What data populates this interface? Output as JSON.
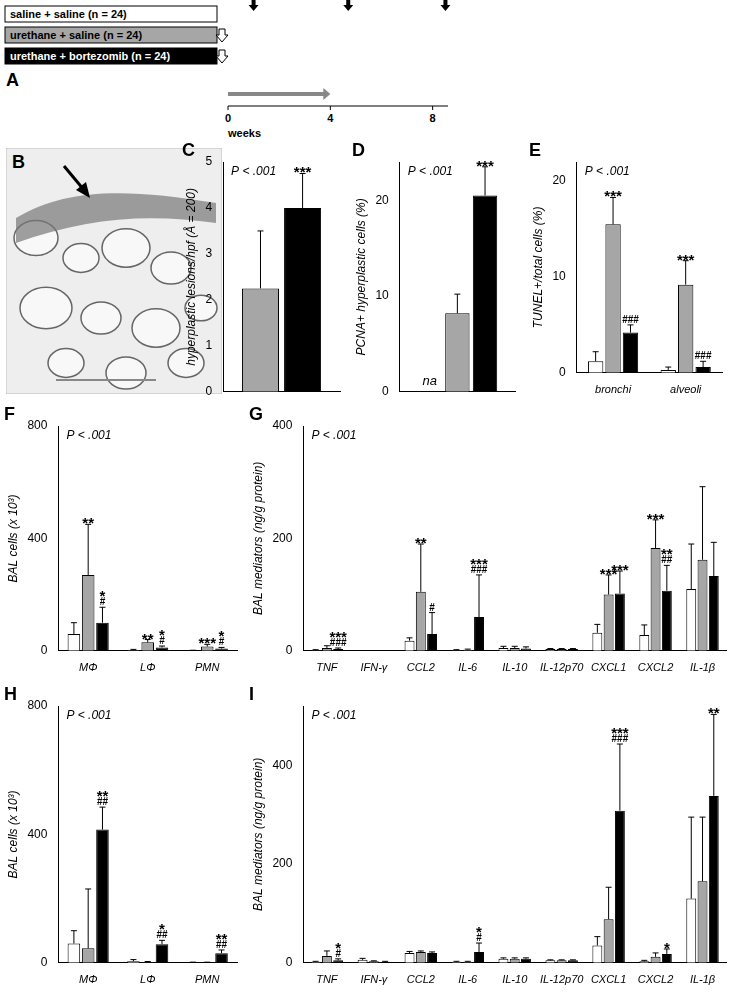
{
  "diagram": {
    "title": "A",
    "groups": [
      {
        "label": "saline + saline (n = 24)",
        "color": "#ffffff"
      },
      {
        "label": "urethane + saline (n = 24)",
        "color": "#a6a6a6"
      },
      {
        "label": "urethane + bortezomib (n = 24)",
        "color": "#000000"
      }
    ],
    "xlim": [
      0,
      8.6
    ],
    "xticks": [
      0,
      4,
      8
    ],
    "xlabel": "weeks",
    "urethane_week": 0,
    "urethane_groups": [
      1,
      2
    ],
    "bortezomib_weeks": [
      0,
      4
    ],
    "harvest_weeks": [
      1,
      4.7,
      8.5
    ]
  },
  "image": {
    "title": "B"
  },
  "chart_data": [
    {
      "type": "bar",
      "title": "C",
      "ylabel": "hyperplastic lesions/hpf (Å = 200)",
      "annotations": [
        "P < .001"
      ],
      "categories": [
        null
      ],
      "tick_labels": "y",
      "ylim": [
        0,
        5
      ],
      "yticks": [
        0,
        1,
        2,
        3,
        4,
        5
      ],
      "series": [
        {
          "color": "#a6a6a6",
          "values": [
            2.25
          ],
          "errors": [
            1.25
          ],
          "marks": [
            null
          ]
        },
        {
          "color": "#000000",
          "values": [
            4.0
          ],
          "errors": [
            0.75
          ],
          "marks": [
            [
              "***"
            ]
          ]
        }
      ]
    },
    {
      "type": "bar",
      "title": "D",
      "ylabel": "PCNA+ hyperplastic cells (%)",
      "annotations": [
        "P < .001"
      ],
      "categories": [
        null
      ],
      "tick_labels": "y",
      "ylim": [
        0,
        24
      ],
      "yticks": [
        0,
        10,
        20
      ],
      "series": [
        {
          "color": "#ffffff",
          "values": [
            null
          ],
          "errors": [
            null
          ],
          "marks": [
            null
          ],
          "null_label": "na"
        },
        {
          "color": "#a6a6a6",
          "values": [
            8.2
          ],
          "errors": [
            2
          ],
          "marks": [
            null
          ]
        },
        {
          "color": "#000000",
          "values": [
            20.5
          ],
          "errors": [
            3
          ],
          "marks": [
            [
              "***"
            ]
          ]
        }
      ]
    },
    {
      "type": "bar",
      "title": "E",
      "ylabel": "TUNEL+/total cells (%)",
      "annotations": [
        "P < .001"
      ],
      "categories": [
        "bronchi",
        "alveoli"
      ],
      "ylim": [
        0,
        22
      ],
      "yticks": [
        0,
        10,
        20
      ],
      "series": [
        {
          "color": "#ffffff",
          "values": [
            1.2,
            0.3
          ],
          "errors": [
            1.0,
            0.3
          ],
          "marks": [
            null,
            null
          ]
        },
        {
          "color": "#a6a6a6",
          "values": [
            15.5,
            9.2
          ],
          "errors": [
            2.8,
            2.5
          ],
          "marks": [
            [
              "***"
            ],
            [
              "***"
            ]
          ]
        },
        {
          "color": "#000000",
          "values": [
            4.2,
            0.6
          ],
          "errors": [
            0.8,
            0.6
          ],
          "marks": [
            [
              "###"
            ],
            [
              "###"
            ]
          ]
        }
      ]
    },
    {
      "type": "bar",
      "title": "F",
      "ylabel": "BAL cells (x 10³)",
      "annotations": [
        "P < .001"
      ],
      "categories": [
        "MΦ",
        "LΦ",
        "PMN"
      ],
      "ylim": [
        0,
        800
      ],
      "yticks": [
        0,
        400,
        800
      ],
      "series": [
        {
          "color": "#ffffff",
          "values": [
            60,
            3,
            1
          ],
          "errors": [
            40,
            2,
            1
          ],
          "marks": [
            null,
            null,
            null
          ]
        },
        {
          "color": "#a6a6a6",
          "values": [
            270,
            30,
            15
          ],
          "errors": [
            180,
            10,
            8
          ],
          "marks": [
            [
              "**"
            ],
            [
              "**"
            ],
            [
              "***"
            ]
          ]
        },
        {
          "color": "#000000",
          "values": [
            100,
            12,
            8
          ],
          "errors": [
            55,
            5,
            4
          ],
          "marks": [
            [
              "*",
              "#"
            ],
            [
              "*",
              "#"
            ],
            [
              "*",
              "#"
            ]
          ]
        }
      ]
    },
    {
      "type": "bar",
      "title": "G",
      "ylabel": "BAL mediators (ng/g protein)",
      "annotations": [
        "P < .001"
      ],
      "categories": [
        "TNF",
        "IFN-γ",
        "CCL2",
        "IL-6",
        "IL-10",
        "IL-12p70",
        "CXCL1",
        "CXCL2",
        "IL-1β"
      ],
      "ylim": [
        0,
        400
      ],
      "yticks": [
        0,
        200,
        400
      ],
      "series": [
        {
          "color": "#ffffff",
          "values": [
            1,
            0,
            18,
            1,
            5,
            3,
            32,
            28,
            110
          ],
          "errors": [
            1,
            0,
            5,
            1,
            3,
            1,
            15,
            18,
            80
          ],
          "marks": [
            null,
            null,
            null,
            null,
            null,
            null,
            null,
            null,
            null
          ]
        },
        {
          "color": "#a6a6a6",
          "values": [
            5,
            0,
            105,
            2,
            5,
            3,
            100,
            183,
            162
          ],
          "errors": [
            4,
            0,
            85,
            1,
            3,
            1,
            35,
            50,
            130
          ],
          "marks": [
            null,
            null,
            [
              "**"
            ],
            null,
            null,
            null,
            [
              "***"
            ],
            [
              "***"
            ],
            null
          ]
        },
        {
          "color": "#000000",
          "values": [
            3,
            0,
            30,
            60,
            4,
            3,
            102,
            107,
            133
          ],
          "errors": [
            2,
            0,
            38,
            75,
            3,
            1,
            40,
            45,
            60
          ],
          "marks": [
            [
              "***",
              "###"
            ],
            null,
            [
              "#"
            ],
            [
              "***",
              "###"
            ],
            null,
            null,
            [
              "***"
            ],
            [
              "**",
              "##"
            ],
            null
          ]
        }
      ]
    },
    {
      "type": "bar",
      "title": "H",
      "ylabel": "BAL cells (x 10³)",
      "annotations": [
        "P < .001"
      ],
      "categories": [
        "MΦ",
        "LΦ",
        "PMN"
      ],
      "ylim": [
        0,
        800
      ],
      "yticks": [
        0,
        400,
        800
      ],
      "series": [
        {
          "color": "#ffffff",
          "values": [
            60,
            5,
            1
          ],
          "errors": [
            40,
            5,
            1
          ],
          "marks": [
            null,
            null,
            null
          ]
        },
        {
          "color": "#a6a6a6",
          "values": [
            45,
            2,
            1
          ],
          "errors": [
            185,
            2,
            1
          ],
          "marks": [
            null,
            null,
            null
          ]
        },
        {
          "color": "#000000",
          "values": [
            415,
            58,
            30
          ],
          "errors": [
            70,
            12,
            10
          ],
          "marks": [
            [
              "**",
              "##"
            ],
            [
              "*",
              "##"
            ],
            [
              "**",
              "##"
            ]
          ]
        }
      ]
    },
    {
      "type": "bar",
      "title": "I",
      "ylabel": "BAL mediators (ng/g protein)",
      "annotations": [
        "P < .001"
      ],
      "categories": [
        "TNF",
        "IFN-γ",
        "CCL2",
        "IL-6",
        "IL-10",
        "IL-12p70",
        "CXCL1",
        "CXCL2",
        "IL-1β"
      ],
      "ylim": [
        0,
        520
      ],
      "yticks": [
        0,
        200,
        400
      ],
      "series": [
        {
          "color": "#ffffff",
          "values": [
            2,
            6,
            20,
            2,
            8,
            5,
            35,
            3,
            130
          ],
          "errors": [
            1,
            3,
            3,
            1,
            2,
            1,
            18,
            2,
            165
          ],
          "marks": [
            null,
            null,
            null,
            null,
            null,
            null,
            null,
            null,
            null
          ]
        },
        {
          "color": "#a6a6a6",
          "values": [
            14,
            3,
            22,
            2,
            8,
            5,
            88,
            12,
            165
          ],
          "errors": [
            10,
            1,
            2,
            1,
            2,
            1,
            65,
            8,
            130
          ],
          "marks": [
            null,
            null,
            null,
            null,
            null,
            null,
            null,
            null,
            null
          ]
        },
        {
          "color": "#000000",
          "values": [
            5,
            2,
            20,
            22,
            8,
            5,
            308,
            18,
            338
          ],
          "errors": [
            3,
            1,
            2,
            18,
            2,
            1,
            135,
            10,
            165
          ],
          "marks": [
            [
              "*",
              "#"
            ],
            null,
            null,
            [
              "*",
              "#"
            ],
            null,
            null,
            [
              "***",
              "###"
            ],
            [
              "*"
            ],
            [
              "**"
            ]
          ]
        }
      ]
    }
  ]
}
